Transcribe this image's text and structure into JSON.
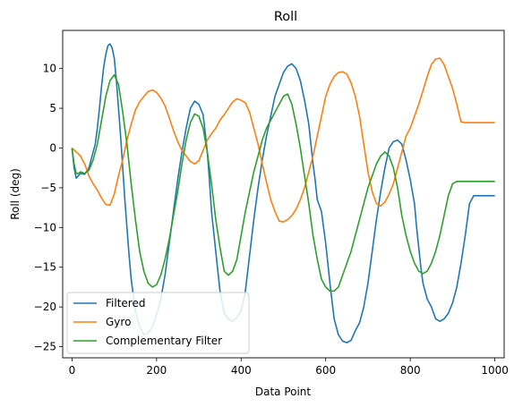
{
  "chart_data": {
    "type": "line",
    "title": "Roll",
    "xlabel": "Data Point",
    "ylabel": "Roll (deg)",
    "xlim": [
      -22,
      1022
    ],
    "ylim": [
      -26.4,
      14.8
    ],
    "xticks": [
      0,
      200,
      400,
      600,
      800,
      1000
    ],
    "yticks": [
      -25,
      -20,
      -15,
      -10,
      -5,
      0,
      5,
      10
    ],
    "grid": false,
    "legend_position": "lower-left",
    "series": [
      {
        "name": "Filtered",
        "color": "#1f77b4",
        "x": [
          0,
          5,
          10,
          15,
          20,
          30,
          40,
          50,
          55,
          60,
          65,
          70,
          75,
          80,
          85,
          90,
          95,
          100,
          105,
          110,
          115,
          120,
          125,
          130,
          135,
          140,
          150,
          160,
          170,
          180,
          190,
          200,
          210,
          220,
          230,
          240,
          250,
          260,
          270,
          280,
          290,
          300,
          310,
          315,
          320,
          325,
          330,
          340,
          350,
          360,
          370,
          380,
          390,
          400,
          410,
          420,
          430,
          440,
          450,
          460,
          470,
          480,
          490,
          500,
          510,
          520,
          530,
          540,
          550,
          560,
          565,
          570,
          575,
          580,
          590,
          600,
          610,
          620,
          630,
          640,
          650,
          660,
          670,
          680,
          690,
          700,
          710,
          720,
          730,
          740,
          750,
          760,
          770,
          780,
          790,
          800,
          810,
          815,
          820,
          825,
          830,
          840,
          850,
          860,
          870,
          880,
          890,
          900,
          910,
          920,
          930,
          940,
          950,
          960,
          970,
          980,
          990,
          1000
        ],
        "y": [
          0,
          -2.5,
          -3.8,
          -3.5,
          -3.2,
          -3.3,
          -2.5,
          -0.5,
          0.5,
          2.5,
          5.0,
          7.8,
          10.2,
          11.8,
          12.9,
          13.1,
          12.6,
          11.3,
          8.5,
          5.0,
          1.5,
          -2.5,
          -6.5,
          -10.0,
          -13.5,
          -16.5,
          -20.5,
          -22.5,
          -23.5,
          -23.3,
          -22.5,
          -21.0,
          -19.0,
          -16.0,
          -12.0,
          -8.0,
          -4.0,
          -0.5,
          2.5,
          5.0,
          5.9,
          5.5,
          4.2,
          2.0,
          -0.5,
          -4.0,
          -8.0,
          -13.0,
          -18.0,
          -20.8,
          -21.5,
          -21.8,
          -21.3,
          -20.5,
          -18.0,
          -13.5,
          -9.0,
          -5.0,
          -1.5,
          1.5,
          4.0,
          6.5,
          8.0,
          9.5,
          10.3,
          10.6,
          10.0,
          8.5,
          6.0,
          3.0,
          0.5,
          -2.0,
          -4.0,
          -6.5,
          -8.0,
          -12.0,
          -17.0,
          -21.5,
          -23.5,
          -24.3,
          -24.5,
          -24.2,
          -23.0,
          -22.0,
          -20.0,
          -17.0,
          -13.0,
          -9.0,
          -5.5,
          -2.5,
          0.0,
          0.8,
          1.0,
          0.5,
          -1.5,
          -4.0,
          -7.0,
          -10.0,
          -12.5,
          -15.0,
          -17.0,
          -19.0,
          -20.0,
          -21.5,
          -21.8,
          -21.5,
          -20.8,
          -19.5,
          -17.5,
          -14.5,
          -11.0,
          -7.0,
          -6.0,
          -6.0,
          -6.0,
          -6.0,
          -6.0,
          -6.0
        ]
      },
      {
        "name": "Gyro",
        "color": "#ff7f0e",
        "x": [
          0,
          10,
          20,
          30,
          40,
          50,
          60,
          70,
          80,
          90,
          100,
          110,
          120,
          130,
          140,
          150,
          160,
          170,
          180,
          190,
          200,
          210,
          220,
          230,
          240,
          250,
          260,
          270,
          280,
          290,
          300,
          310,
          320,
          330,
          340,
          350,
          360,
          370,
          380,
          390,
          400,
          410,
          420,
          430,
          440,
          450,
          460,
          470,
          480,
          490,
          500,
          510,
          520,
          530,
          540,
          550,
          560,
          570,
          580,
          590,
          600,
          610,
          620,
          630,
          640,
          650,
          660,
          670,
          680,
          690,
          700,
          710,
          720,
          730,
          740,
          750,
          760,
          770,
          780,
          790,
          800,
          810,
          820,
          830,
          840,
          850,
          860,
          870,
          880,
          890,
          900,
          910,
          920,
          930,
          940,
          950,
          960,
          970,
          980,
          990,
          1000
        ],
        "y": [
          0,
          -0.5,
          -1.0,
          -2.0,
          -3.5,
          -4.5,
          -5.3,
          -6.3,
          -7.1,
          -7.2,
          -5.8,
          -3.5,
          -1.5,
          1.0,
          3.0,
          4.8,
          5.8,
          6.5,
          7.1,
          7.3,
          7.0,
          6.3,
          5.3,
          3.8,
          2.2,
          0.8,
          -0.3,
          -1.0,
          -1.7,
          -2.0,
          -1.6,
          -0.3,
          1.0,
          1.8,
          2.5,
          3.5,
          4.2,
          5.0,
          5.8,
          6.2,
          6.0,
          5.7,
          4.5,
          2.5,
          0.5,
          -2.0,
          -4.3,
          -6.5,
          -8.0,
          -9.2,
          -9.3,
          -9.0,
          -8.5,
          -7.7,
          -6.5,
          -5.0,
          -3.0,
          -1.0,
          1.5,
          4.0,
          6.5,
          8.0,
          9.0,
          9.5,
          9.6,
          9.3,
          8.2,
          6.5,
          4.0,
          0.5,
          -3.0,
          -5.5,
          -7.0,
          -7.3,
          -6.8,
          -5.8,
          -4.5,
          -2.5,
          -0.5,
          1.5,
          2.5,
          4.0,
          5.5,
          7.2,
          9.0,
          10.5,
          11.2,
          11.3,
          10.5,
          9.0,
          7.5,
          5.5,
          3.3,
          3.2,
          3.2,
          3.2,
          3.2,
          3.2,
          3.2,
          3.2,
          3.2
        ]
      },
      {
        "name": "Complementary Filter",
        "color": "#2ca02c",
        "x": [
          0,
          5,
          10,
          15,
          20,
          30,
          40,
          50,
          60,
          70,
          80,
          90,
          100,
          110,
          120,
          130,
          140,
          150,
          160,
          170,
          180,
          190,
          200,
          210,
          220,
          230,
          240,
          250,
          260,
          270,
          280,
          290,
          300,
          310,
          320,
          330,
          340,
          350,
          360,
          370,
          380,
          390,
          400,
          410,
          420,
          430,
          440,
          450,
          460,
          470,
          480,
          490,
          500,
          510,
          520,
          530,
          540,
          550,
          560,
          570,
          580,
          590,
          600,
          610,
          620,
          630,
          640,
          650,
          660,
          670,
          680,
          690,
          700,
          710,
          720,
          730,
          740,
          750,
          760,
          770,
          780,
          790,
          800,
          810,
          820,
          830,
          840,
          850,
          860,
          870,
          880,
          890,
          900,
          910,
          920,
          930,
          940,
          950,
          960,
          970,
          980,
          990,
          1000
        ],
        "y": [
          0,
          -2.0,
          -3.2,
          -3.2,
          -3.0,
          -3.2,
          -2.8,
          -1.5,
          0.5,
          3.5,
          6.5,
          8.5,
          9.2,
          8.0,
          4.5,
          0.5,
          -4.5,
          -9.0,
          -13.0,
          -15.5,
          -17.0,
          -17.5,
          -17.2,
          -16.0,
          -14.0,
          -11.5,
          -8.5,
          -5.5,
          -2.0,
          1.0,
          3.2,
          4.3,
          4.0,
          2.5,
          -0.5,
          -4.5,
          -9.0,
          -12.5,
          -15.5,
          -16.0,
          -15.5,
          -14.0,
          -11.0,
          -8.0,
          -5.5,
          -3.0,
          -1.0,
          1.0,
          2.5,
          3.5,
          4.5,
          5.5,
          6.5,
          6.8,
          5.5,
          3.0,
          0.0,
          -3.5,
          -7.0,
          -11.0,
          -14.0,
          -16.5,
          -17.5,
          -18.0,
          -18.0,
          -17.5,
          -16.0,
          -14.5,
          -13.0,
          -11.0,
          -9.0,
          -7.0,
          -5.0,
          -3.5,
          -2.0,
          -1.0,
          -0.5,
          -1.0,
          -2.5,
          -5.0,
          -8.5,
          -11.0,
          -13.0,
          -14.5,
          -15.5,
          -15.8,
          -15.5,
          -14.5,
          -13.0,
          -11.0,
          -8.5,
          -6.0,
          -4.5,
          -4.2,
          -4.2,
          -4.2,
          -4.2,
          -4.2,
          -4.2,
          -4.2,
          -4.2,
          -4.2,
          -4.2
        ]
      }
    ]
  }
}
